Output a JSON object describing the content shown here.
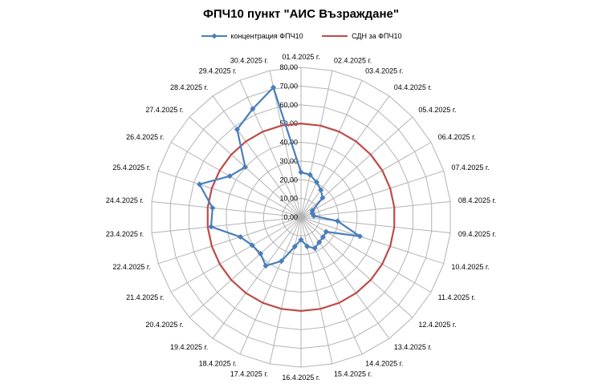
{
  "chart_data": {
    "type": "radar",
    "title": "ФПЧ10 пункт \"АИС Възраждане\"",
    "categories": [
      "01.4.2025 г.",
      "02.4.2025 г.",
      "03.4.2025 г.",
      "04.4.2025 г.",
      "05.4.2025 г.",
      "06.4.2025 г.",
      "07.4.2025 г.",
      "08.4.2025 г.",
      "09.4.2025 г.",
      "10.4.2025 г.",
      "11.4.2025 г.",
      "12.4.2025 г.",
      "13.4.2025 г.",
      "14.4.2025 г.",
      "15.4.2025 г.",
      "16.4.2025 г.",
      "17.4.2025 г.",
      "18.4.2025 г.",
      "19.4.2025 г.",
      "20.4.2025 г.",
      "21.4.2025 г.",
      "22.4.2025 г.",
      "23.4.2025 г.",
      "24.4.2025 г.",
      "25.4.2025 г.",
      "26.4.2025 г.",
      "27.4.2025 г.",
      "28.4.2025 г.",
      "29.4.2025 г.",
      "30.4.2025 г."
    ],
    "series": [
      {
        "name": "концентрация  ФПЧ10",
        "color": "#4A7EBB",
        "marker": "diamond",
        "values": [
          24.0,
          23.2,
          20.5,
          18.0,
          15.5,
          7.0,
          6.4,
          6.9,
          19.6,
          33.0,
          15.5,
          15.8,
          16.5,
          18.1,
          15.9,
          12.0,
          16.0,
          25.6,
          32.0,
          29.0,
          30.0,
          34.0,
          48.2,
          47.4,
          56.9,
          43.9,
          40.0,
          57.9,
          63.3,
          70.8
        ]
      },
      {
        "name": "СДН за ФПЧ10",
        "color": "#BE4B48",
        "marker": "none",
        "values": [
          50,
          50,
          50,
          50,
          50,
          50,
          50,
          50,
          50,
          50,
          50,
          50,
          50,
          50,
          50,
          50,
          50,
          50,
          50,
          50,
          50,
          50,
          50,
          50,
          50,
          50,
          50,
          50,
          50,
          50
        ]
      }
    ],
    "ticks": [
      "0,00",
      "10,00",
      "20,00",
      "30,00",
      "40,00",
      "50,00",
      "60,00",
      "70,00",
      "80,00"
    ],
    "rmin": 0,
    "rmax": 80,
    "grid": true,
    "legend_position": "top",
    "grid_color": "#B3B3B3"
  }
}
